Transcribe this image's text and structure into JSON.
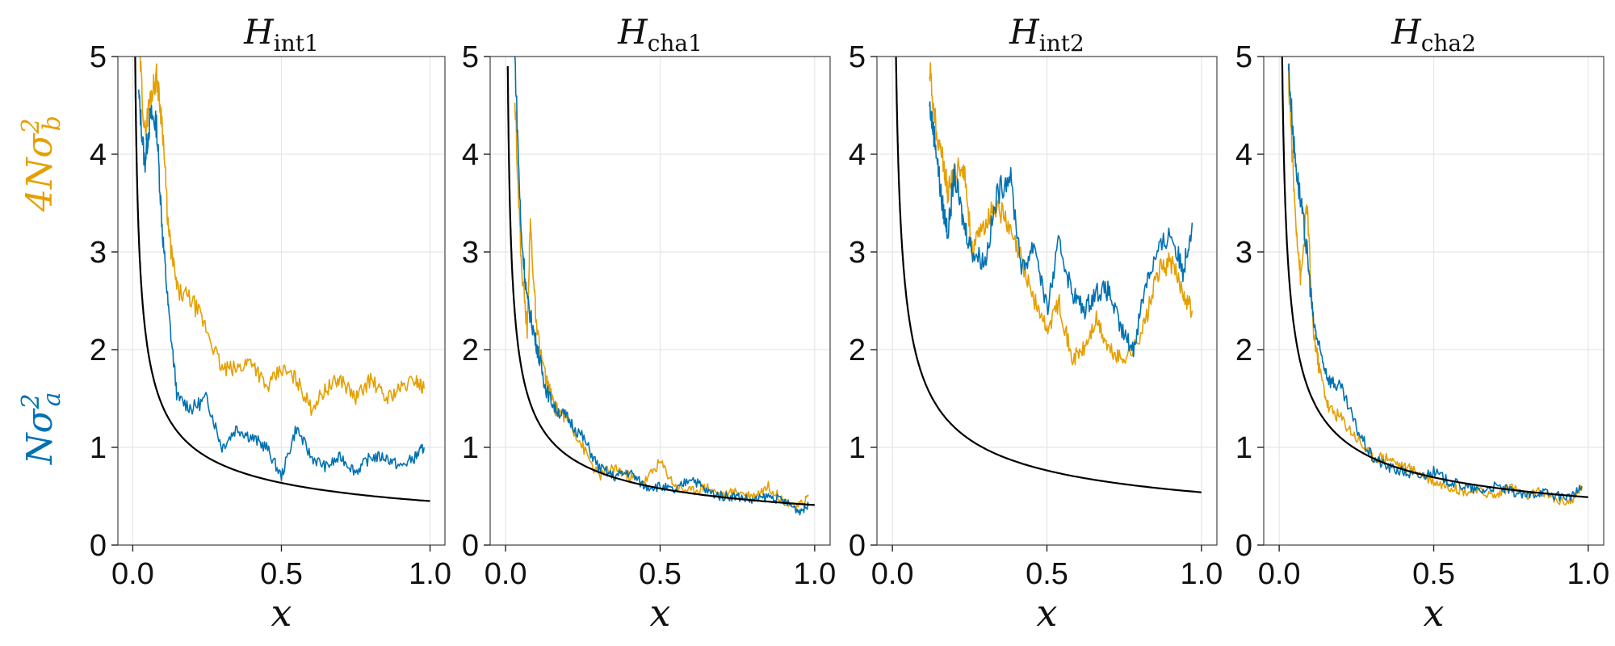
{
  "chart_data": {
    "type": "line",
    "ylabels": [
      {
        "text": "4Nσ²",
        "sub": "b",
        "color": "#e69f00"
      },
      {
        "text": "Nσ²",
        "sub": "a",
        "color": "#0072b2"
      }
    ],
    "xlabel": "x",
    "xlim": [
      -0.05,
      1.05
    ],
    "ylim": [
      0,
      5
    ],
    "xticks": [
      0.0,
      0.5,
      1.0
    ],
    "xtick_labels": [
      "0.0",
      "0.5",
      "1.0"
    ],
    "yticks": [
      0,
      1,
      2,
      3,
      4,
      5
    ],
    "ytick_labels": [
      "0",
      "1",
      "2",
      "3",
      "4",
      "5"
    ],
    "grid": true,
    "colors": {
      "orange": "#e69f00",
      "blue": "#0072b2",
      "theory": "#000000",
      "grid": "#e6e6e6",
      "frame": "#444444"
    },
    "panels": [
      {
        "title": "H",
        "subscript": "int1",
        "series": [
          {
            "name": "orange",
            "color": "#e69f00",
            "x": [
              0.02,
              0.04,
              0.06,
              0.08,
              0.1,
              0.12,
              0.15,
              0.2,
              0.25,
              0.3,
              0.35,
              0.4,
              0.45,
              0.5,
              0.55,
              0.6,
              0.65,
              0.7,
              0.75,
              0.8,
              0.85,
              0.9,
              0.95,
              0.98
            ],
            "y": [
              5.2,
              4.2,
              4.6,
              4.8,
              4.3,
              3.2,
              2.6,
              2.5,
              2.2,
              1.8,
              1.8,
              1.9,
              1.6,
              1.8,
              1.7,
              1.4,
              1.6,
              1.7,
              1.5,
              1.7,
              1.5,
              1.6,
              1.7,
              1.6
            ]
          },
          {
            "name": "blue",
            "color": "#0072b2",
            "x": [
              0.02,
              0.04,
              0.06,
              0.08,
              0.1,
              0.12,
              0.15,
              0.2,
              0.25,
              0.3,
              0.35,
              0.4,
              0.45,
              0.5,
              0.55,
              0.6,
              0.65,
              0.7,
              0.75,
              0.8,
              0.85,
              0.9,
              0.95,
              0.98
            ],
            "y": [
              4.6,
              3.9,
              4.4,
              4.3,
              3.2,
              2.4,
              1.5,
              1.4,
              1.5,
              1.0,
              1.2,
              1.1,
              1.0,
              0.7,
              1.2,
              0.9,
              0.8,
              0.9,
              0.75,
              0.9,
              0.9,
              0.8,
              0.9,
              1.0
            ]
          },
          {
            "name": "theory",
            "color": "#000000",
            "fn": "c/sqrt(x)",
            "c": 0.45,
            "xmin": 0.008,
            "xmax": 1.0
          }
        ]
      },
      {
        "title": "H",
        "subscript": "cha1",
        "series": [
          {
            "name": "orange",
            "color": "#e69f00",
            "x": [
              0.03,
              0.05,
              0.07,
              0.08,
              0.1,
              0.13,
              0.16,
              0.2,
              0.25,
              0.3,
              0.35,
              0.4,
              0.45,
              0.5,
              0.55,
              0.6,
              0.65,
              0.7,
              0.75,
              0.8,
              0.85,
              0.9,
              0.95,
              0.98
            ],
            "y": [
              4.6,
              2.9,
              2.2,
              3.3,
              2.2,
              1.7,
              1.4,
              1.3,
              1.0,
              0.7,
              0.8,
              0.7,
              0.65,
              0.85,
              0.6,
              0.55,
              0.6,
              0.5,
              0.55,
              0.5,
              0.6,
              0.45,
              0.4,
              0.5
            ]
          },
          {
            "name": "blue",
            "color": "#0072b2",
            "x": [
              0.03,
              0.05,
              0.07,
              0.09,
              0.11,
              0.13,
              0.16,
              0.2,
              0.25,
              0.3,
              0.35,
              0.4,
              0.45,
              0.5,
              0.55,
              0.6,
              0.65,
              0.7,
              0.75,
              0.8,
              0.85,
              0.9,
              0.95,
              0.98
            ],
            "y": [
              5.0,
              3.2,
              2.5,
              2.2,
              1.9,
              1.6,
              1.4,
              1.3,
              1.1,
              0.8,
              0.7,
              0.75,
              0.6,
              0.6,
              0.55,
              0.7,
              0.55,
              0.5,
              0.5,
              0.45,
              0.5,
              0.45,
              0.35,
              0.4
            ]
          },
          {
            "name": "theory",
            "color": "#000000",
            "fn": "c/sqrt(x)",
            "c": 0.41,
            "xmin": 0.007,
            "xmax": 1.0
          }
        ]
      },
      {
        "title": "H",
        "subscript": "int2",
        "series": [
          {
            "name": "orange",
            "color": "#e69f00",
            "x": [
              0.12,
              0.14,
              0.16,
              0.18,
              0.2,
              0.23,
              0.26,
              0.3,
              0.34,
              0.38,
              0.42,
              0.46,
              0.5,
              0.54,
              0.58,
              0.62,
              0.66,
              0.7,
              0.74,
              0.78,
              0.82,
              0.86,
              0.9,
              0.94,
              0.97
            ],
            "y": [
              4.9,
              4.3,
              4.0,
              3.6,
              3.8,
              3.9,
              3.0,
              3.3,
              3.5,
              3.2,
              2.9,
              2.5,
              2.2,
              2.5,
              1.9,
              2.0,
              2.3,
              2.0,
              1.9,
              2.0,
              2.3,
              2.8,
              2.9,
              2.6,
              2.4
            ]
          },
          {
            "name": "blue",
            "color": "#0072b2",
            "x": [
              0.12,
              0.14,
              0.16,
              0.18,
              0.2,
              0.23,
              0.26,
              0.3,
              0.34,
              0.38,
              0.42,
              0.46,
              0.5,
              0.54,
              0.58,
              0.62,
              0.66,
              0.7,
              0.74,
              0.78,
              0.82,
              0.86,
              0.9,
              0.94,
              0.97
            ],
            "y": [
              4.5,
              4.1,
              3.5,
              3.2,
              3.8,
              3.3,
              3.0,
              2.9,
              3.6,
              3.8,
              2.8,
              3.1,
              2.4,
              3.1,
              2.6,
              2.4,
              2.6,
              2.6,
              2.2,
              2.0,
              2.7,
              3.0,
              3.2,
              2.8,
              3.3
            ]
          },
          {
            "name": "theory",
            "color": "#000000",
            "fn": "c/sqrt(x)",
            "c": 0.54,
            "xmin": 0.01,
            "xmax": 1.0
          }
        ]
      },
      {
        "title": "H",
        "subscript": "cha2",
        "series": [
          {
            "name": "orange",
            "color": "#e69f00",
            "x": [
              0.03,
              0.05,
              0.07,
              0.09,
              0.11,
              0.13,
              0.16,
              0.2,
              0.25,
              0.3,
              0.35,
              0.4,
              0.45,
              0.5,
              0.55,
              0.6,
              0.65,
              0.7,
              0.75,
              0.8,
              0.85,
              0.9,
              0.95,
              0.98
            ],
            "y": [
              4.8,
              3.5,
              2.7,
              3.5,
              2.2,
              1.8,
              1.4,
              1.3,
              1.1,
              0.9,
              0.9,
              0.8,
              0.75,
              0.65,
              0.6,
              0.55,
              0.55,
              0.5,
              0.6,
              0.5,
              0.55,
              0.45,
              0.45,
              0.6
            ]
          },
          {
            "name": "blue",
            "color": "#0072b2",
            "x": [
              0.03,
              0.05,
              0.07,
              0.09,
              0.11,
              0.13,
              0.16,
              0.2,
              0.25,
              0.3,
              0.35,
              0.4,
              0.45,
              0.5,
              0.55,
              0.6,
              0.65,
              0.7,
              0.75,
              0.8,
              0.85,
              0.9,
              0.95,
              0.98
            ],
            "y": [
              4.9,
              4.0,
              3.5,
              3.0,
              2.3,
              2.0,
              1.7,
              1.6,
              1.2,
              0.9,
              0.8,
              0.75,
              0.7,
              0.75,
              0.65,
              0.6,
              0.55,
              0.6,
              0.55,
              0.5,
              0.55,
              0.5,
              0.5,
              0.6
            ]
          },
          {
            "name": "theory",
            "color": "#000000",
            "fn": "c/sqrt(x)",
            "c": 0.49,
            "xmin": 0.009,
            "xmax": 1.0
          }
        ]
      }
    ]
  }
}
